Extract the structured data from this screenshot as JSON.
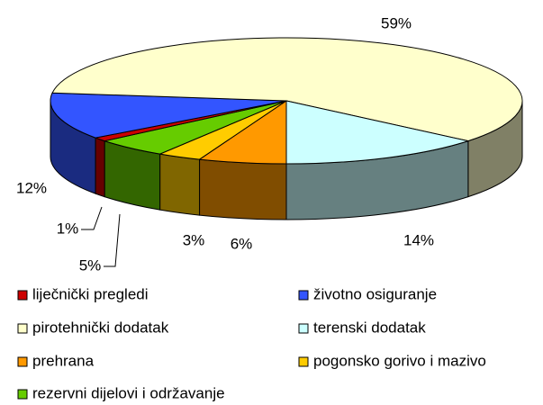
{
  "chart_data": {
    "type": "pie3d",
    "categories": [
      "prehrana",
      "pogonsko gorivo i mazivo",
      "rezervni dijelovi i održavanje",
      "liječnički pregledi",
      "životno osiguranje",
      "pirotehnički dodatak",
      "terenski dodatak"
    ],
    "values": [
      6,
      3,
      5,
      1,
      12,
      59,
      14
    ],
    "value_labels": [
      "6%",
      "3%",
      "5%",
      "1%",
      "12%",
      "59%",
      "14%"
    ],
    "colors": [
      "#ff9900",
      "#ffcc00",
      "#66cc00",
      "#cc0000",
      "#3355ff",
      "#ffffcc",
      "#ccffff"
    ],
    "legend": "bottom"
  }
}
